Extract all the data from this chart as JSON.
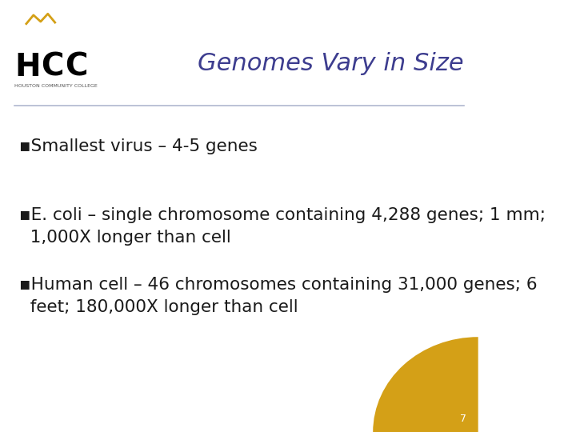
{
  "title": "Genomes Vary in Size",
  "title_color": "#3d3d8f",
  "title_fontsize": 22,
  "background_color": "#ffffff",
  "header_line_color": "#b0b8d0",
  "bullet_lines": [
    "▪Smallest virus – 4-5 genes",
    "▪E. coli – single chromosome containing 4,288 genes; 1 mm;\n  1,000X longer than cell",
    "▪Human cell – 46 chromosomes containing 31,000 genes; 6\n  feet; 180,000X longer than cell"
  ],
  "bullet_color": "#1a1a1a",
  "bullet_fontsize": 15.5,
  "page_number": "7",
  "page_number_color": "#ffffff",
  "gold_color": "#d4a017",
  "hcc_text_color": "#1a1a1a",
  "hcc_subtitle": "HOUSTON COMMUNITY COLLEGE"
}
